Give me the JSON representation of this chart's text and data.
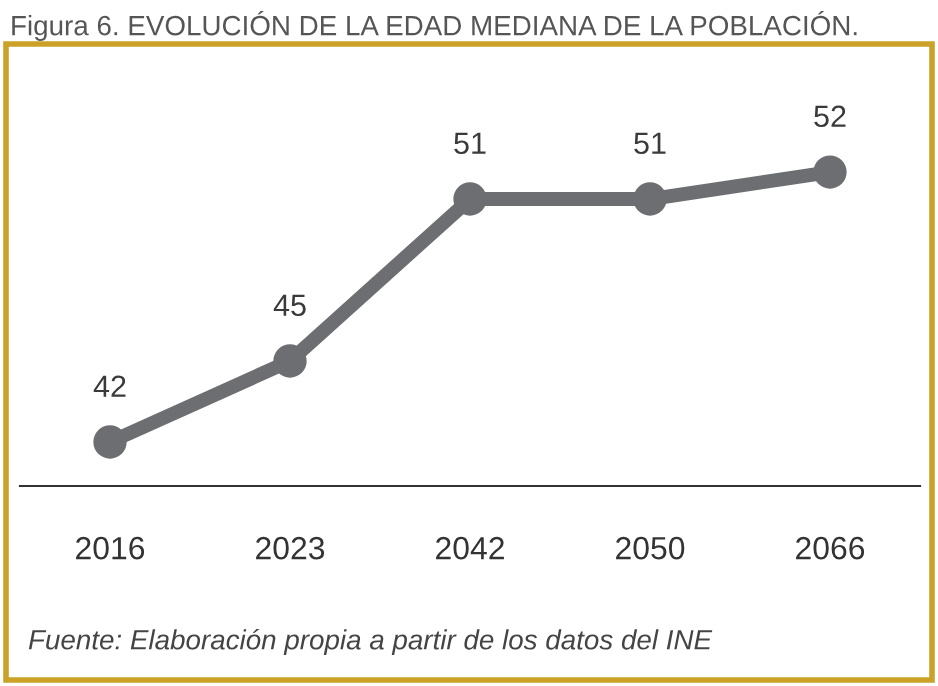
{
  "chart_data": {
    "type": "line",
    "title": "Figura 6. EVOLUCIÓN DE LA EDAD MEDIANA DE LA POBLACIÓN.",
    "categories": [
      "2016",
      "2023",
      "2042",
      "2050",
      "2066"
    ],
    "series": [
      {
        "color": "#6d6e71",
        "values": [
          42,
          45,
          51,
          51,
          52
        ]
      }
    ],
    "tick_labels": "x",
    "data_labels": true,
    "marker": "circle",
    "line_style": "solid",
    "grid": false,
    "legend": false,
    "annotations": [
      "Fuente: Elaboración propia a partir de los datos del INE"
    ]
  }
}
